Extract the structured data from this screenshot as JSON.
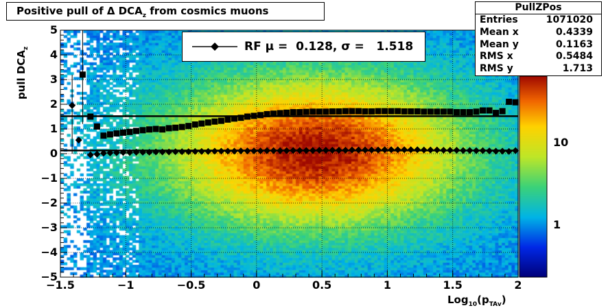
{
  "title": {
    "text": "Positive pull of Δ DCA",
    "sub": "z",
    "suffix": " from cosmics muons"
  },
  "stats": {
    "name": "PullZPos",
    "rows": [
      {
        "label": "Entries",
        "value": "1071020"
      },
      {
        "label": "Mean x",
        "value": "0.4339"
      },
      {
        "label": "Mean y",
        "value": "0.1163"
      },
      {
        "label": "RMS x",
        "value": "0.5484"
      },
      {
        "label": "RMS y",
        "value": "1.713"
      }
    ]
  },
  "legend": {
    "text": "RF μ =  0.128, σ =   1.518"
  },
  "colors": {
    "marker": "#000000",
    "axis": "#000000"
  },
  "chart_data": {
    "type": "heatmap",
    "xlabel": "Log10(pTAv)",
    "xlabel_main": "Log",
    "xlabel_sub1": "10",
    "xlabel_mid": "(p",
    "xlabel_sub2": "TAv",
    "xlabel_end": ")",
    "ylabel_main": "pull DCA",
    "ylabel_sub": "z",
    "xlim": [
      -1.5,
      2.0
    ],
    "ylim": [
      -5,
      5
    ],
    "xticks": [
      "−1.5",
      "−1",
      "−0.5",
      "0",
      "0.5",
      "1",
      "1.5",
      "2"
    ],
    "xtick_values": [
      -1.5,
      -1,
      -0.5,
      0,
      0.5,
      1,
      1.5,
      2
    ],
    "yticks": [
      "−5",
      "−4",
      "−3",
      "−2",
      "−1",
      "0",
      "1",
      "2",
      "3",
      "4",
      "5"
    ],
    "ytick_values": [
      -5,
      -4,
      -3,
      -2,
      -1,
      0,
      1,
      2,
      3,
      4,
      5
    ],
    "colorbar_ticks": [
      "1",
      "10"
    ],
    "colorbar_tick_values": [
      1,
      10
    ],
    "colorbar_log": true,
    "grid": true,
    "heat_center": {
      "x": 0.45,
      "y": 0.1
    },
    "heat_spread": {
      "x": 0.6,
      "y": 1.6
    },
    "fit_lines": [
      {
        "name": "mean fit",
        "y": 0.128
      },
      {
        "name": "sigma fit",
        "y": 1.518
      }
    ],
    "series": [
      {
        "marker": "diamond",
        "x": [
          -1.41,
          -1.36,
          -1.27,
          -1.22,
          -1.17,
          -1.12,
          -1.07,
          -1.02,
          -0.97,
          -0.92,
          -0.87,
          -0.82,
          -0.77,
          -0.72,
          -0.67,
          -0.62,
          -0.57,
          -0.52,
          -0.47,
          -0.42,
          -0.37,
          -0.32,
          -0.27,
          -0.22,
          -0.17,
          -0.12,
          -0.07,
          -0.02,
          0.03,
          0.08,
          0.13,
          0.18,
          0.23,
          0.28,
          0.33,
          0.38,
          0.43,
          0.48,
          0.53,
          0.58,
          0.63,
          0.68,
          0.73,
          0.78,
          0.83,
          0.88,
          0.93,
          0.98,
          1.03,
          1.08,
          1.13,
          1.18,
          1.23,
          1.28,
          1.33,
          1.38,
          1.43,
          1.48,
          1.53,
          1.58,
          1.63,
          1.68,
          1.73,
          1.78,
          1.83,
          1.88,
          1.93,
          1.98
        ],
        "y": [
          1.95,
          0.55,
          -0.05,
          -0.02,
          0.02,
          0.03,
          0.04,
          0.05,
          0.05,
          0.06,
          0.06,
          0.06,
          0.07,
          0.07,
          0.07,
          0.08,
          0.08,
          0.08,
          0.09,
          0.09,
          0.09,
          0.1,
          0.1,
          0.1,
          0.1,
          0.11,
          0.11,
          0.11,
          0.11,
          0.12,
          0.12,
          0.12,
          0.12,
          0.13,
          0.13,
          0.13,
          0.13,
          0.14,
          0.14,
          0.14,
          0.14,
          0.14,
          0.15,
          0.15,
          0.15,
          0.15,
          0.15,
          0.16,
          0.16,
          0.16,
          0.16,
          0.16,
          0.16,
          0.15,
          0.15,
          0.15,
          0.14,
          0.14,
          0.14,
          0.13,
          0.13,
          0.12,
          0.12,
          0.11,
          0.1,
          0.1,
          0.09,
          0.12
        ],
        "yerr_first": [
          0,
          3.2
        ]
      },
      {
        "marker": "square",
        "x": [
          -1.33,
          -1.27,
          -1.22,
          -1.17,
          -1.12,
          -1.07,
          -1.02,
          -0.97,
          -0.92,
          -0.87,
          -0.82,
          -0.77,
          -0.72,
          -0.67,
          -0.62,
          -0.57,
          -0.52,
          -0.47,
          -0.42,
          -0.37,
          -0.32,
          -0.27,
          -0.22,
          -0.17,
          -0.12,
          -0.07,
          -0.02,
          0.03,
          0.08,
          0.13,
          0.18,
          0.23,
          0.28,
          0.33,
          0.38,
          0.43,
          0.48,
          0.53,
          0.58,
          0.63,
          0.68,
          0.73,
          0.78,
          0.83,
          0.88,
          0.93,
          0.98,
          1.03,
          1.08,
          1.13,
          1.18,
          1.23,
          1.28,
          1.33,
          1.38,
          1.43,
          1.48,
          1.53,
          1.58,
          1.63,
          1.68,
          1.73,
          1.78,
          1.83,
          1.88,
          1.93,
          1.98
        ],
        "y": [
          3.2,
          1.5,
          1.1,
          0.73,
          0.78,
          0.82,
          0.85,
          0.88,
          0.92,
          0.95,
          0.98,
          1.0,
          0.98,
          1.03,
          1.05,
          1.08,
          1.12,
          1.18,
          1.22,
          1.26,
          1.3,
          1.33,
          1.38,
          1.42,
          1.45,
          1.5,
          1.53,
          1.56,
          1.6,
          1.62,
          1.64,
          1.66,
          1.68,
          1.68,
          1.69,
          1.7,
          1.7,
          1.7,
          1.71,
          1.71,
          1.72,
          1.72,
          1.72,
          1.71,
          1.71,
          1.72,
          1.72,
          1.72,
          1.72,
          1.71,
          1.71,
          1.71,
          1.7,
          1.7,
          1.7,
          1.7,
          1.7,
          1.68,
          1.68,
          1.68,
          1.7,
          1.75,
          1.75,
          1.65,
          1.72,
          2.1,
          2.08
        ],
        "yerr_first": [
          1.2,
          5.0
        ]
      }
    ]
  }
}
